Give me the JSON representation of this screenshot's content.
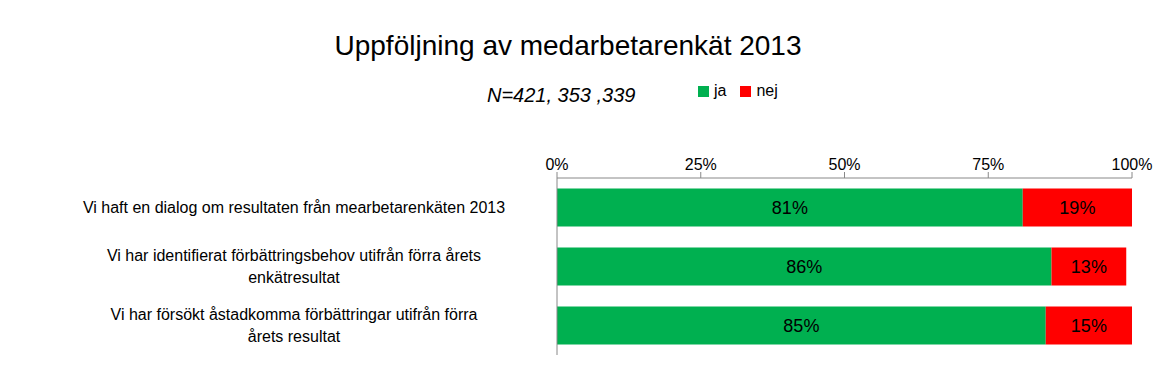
{
  "chart_data": {
    "type": "bar",
    "title": "Uppföljning av medarbetarenkät 2013",
    "subtitle": "N=421, 353 ,339",
    "orientation": "horizontal",
    "stacked": true,
    "data_labels": true,
    "grid": false,
    "legend": "top",
    "categories": [
      "Vi haft en dialog om resultaten från mearbetarenkäten 2013",
      "Vi har identifierat förbättringsbehov utifrån förra årets enkätresultat",
      "Vi har försökt åstadkomma förbättringar utifrån förra årets resultat"
    ],
    "series": [
      {
        "name": "ja",
        "color": "#00b050",
        "values": [
          81,
          86,
          85
        ],
        "value_labels": [
          "81%",
          "86%",
          "85%"
        ]
      },
      {
        "name": "nej",
        "color": "#ff0000",
        "values": [
          19,
          13,
          15
        ],
        "value_labels": [
          "19%",
          "13%",
          "15%"
        ]
      }
    ],
    "xlim": [
      0,
      100
    ],
    "xticks": [
      {
        "value": 0,
        "label": "0%"
      },
      {
        "value": 25,
        "label": "25%"
      },
      {
        "value": 50,
        "label": "50%"
      },
      {
        "value": 75,
        "label": "75%"
      },
      {
        "value": 100,
        "label": "100%"
      }
    ]
  }
}
